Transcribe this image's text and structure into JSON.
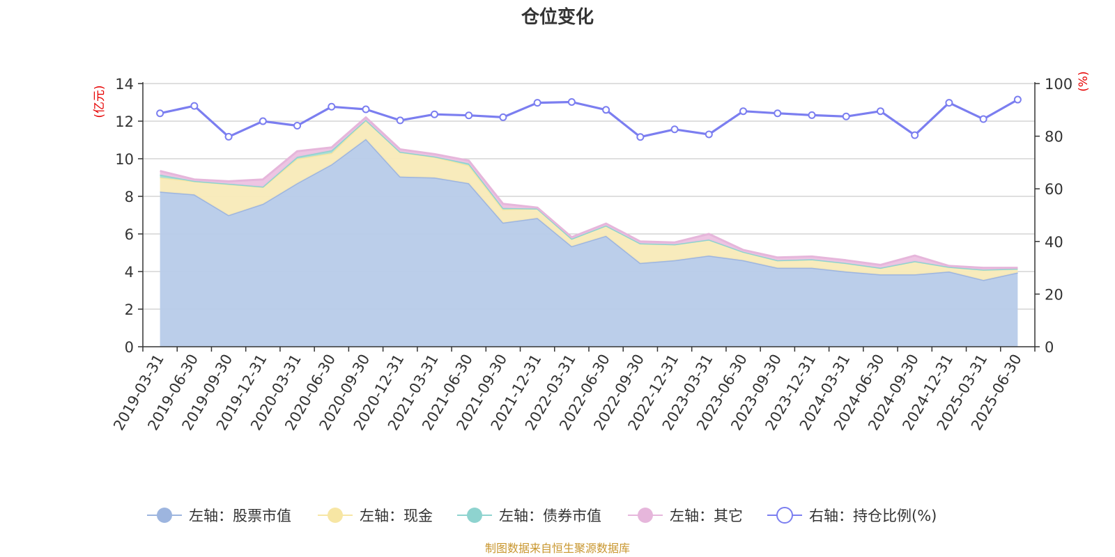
{
  "chart_data": {
    "type": "area",
    "title": "仓位变化",
    "left_unit": "(亿元)",
    "right_unit": "(%)",
    "left_ylim": [
      0,
      14
    ],
    "left_ticks": [
      "0",
      "2",
      "4",
      "6",
      "8",
      "10",
      "12",
      "14"
    ],
    "right_ylim": [
      0,
      100
    ],
    "right_ticks": [
      "0",
      "20",
      "40",
      "60",
      "80",
      "100"
    ],
    "grid": true,
    "legend_position": "bottom",
    "categories": [
      "2019-03-31",
      "2019-06-30",
      "2019-09-30",
      "2019-12-31",
      "2020-03-31",
      "2020-06-30",
      "2020-09-30",
      "2020-12-31",
      "2021-03-31",
      "2021-06-30",
      "2021-09-30",
      "2021-12-31",
      "2022-03-31",
      "2022-06-30",
      "2022-09-30",
      "2022-12-31",
      "2023-03-31",
      "2023-06-30",
      "2023-09-30",
      "2023-12-31",
      "2024-03-31",
      "2024-06-30",
      "2024-09-30",
      "2024-12-31",
      "2025-03-31",
      "2025-06-30"
    ],
    "stacked_series": [
      {
        "name": "左轴：股票市值",
        "color": "#9db5df",
        "fill": "#b7cbe9",
        "values": [
          8.25,
          8.1,
          7.0,
          7.6,
          8.7,
          9.7,
          11.05,
          9.05,
          9.0,
          8.7,
          6.6,
          6.85,
          5.35,
          5.9,
          4.45,
          4.6,
          4.85,
          4.6,
          4.2,
          4.2,
          4.0,
          3.85,
          3.85,
          4.0,
          3.55,
          3.95
        ]
      },
      {
        "name": "左轴：现金",
        "color": "#f7e6a4",
        "fill": "#f8eab8",
        "values": [
          0.75,
          0.7,
          1.65,
          0.9,
          1.3,
          0.6,
          1.0,
          1.3,
          1.1,
          0.95,
          0.7,
          0.5,
          0.4,
          0.55,
          1.05,
          0.85,
          0.85,
          0.45,
          0.4,
          0.45,
          0.45,
          0.35,
          0.7,
          0.25,
          0.55,
          0.2
        ]
      },
      {
        "name": "左轴：债券市值",
        "color": "#8ed3cf",
        "fill": "#a8dcd6",
        "values": [
          0.15,
          0.02,
          0.02,
          0.02,
          0.1,
          0.15,
          0.02,
          0.02,
          0.02,
          0.1,
          0.08,
          0.0,
          0.0,
          0.0,
          0.0,
          0.0,
          0.0,
          0.0,
          0.0,
          0.0,
          0.0,
          0.0,
          0.0,
          0.0,
          0.0,
          0.0
        ]
      },
      {
        "name": "左轴：其它",
        "color": "#e6b6db",
        "fill": "#edc2e2",
        "values": [
          0.2,
          0.08,
          0.13,
          0.38,
          0.3,
          0.15,
          0.13,
          0.13,
          0.13,
          0.15,
          0.22,
          0.05,
          0.08,
          0.1,
          0.1,
          0.1,
          0.3,
          0.1,
          0.15,
          0.15,
          0.15,
          0.15,
          0.3,
          0.05,
          0.1,
          0.05
        ]
      }
    ],
    "line_series": {
      "name": "右轴：持仓比例(%)",
      "color": "#7b7ef0",
      "axis": "right",
      "values": [
        88.7,
        91.5,
        79.8,
        85.7,
        84.0,
        91.2,
        90.2,
        86.0,
        88.3,
        87.9,
        87.2,
        92.7,
        93.0,
        90.0,
        79.7,
        82.6,
        80.7,
        89.5,
        88.7,
        88.0,
        87.5,
        89.5,
        80.4,
        92.7,
        86.5,
        93.9
      ]
    }
  },
  "footer": {
    "source": "制图数据来自恒生聚源数据库"
  }
}
